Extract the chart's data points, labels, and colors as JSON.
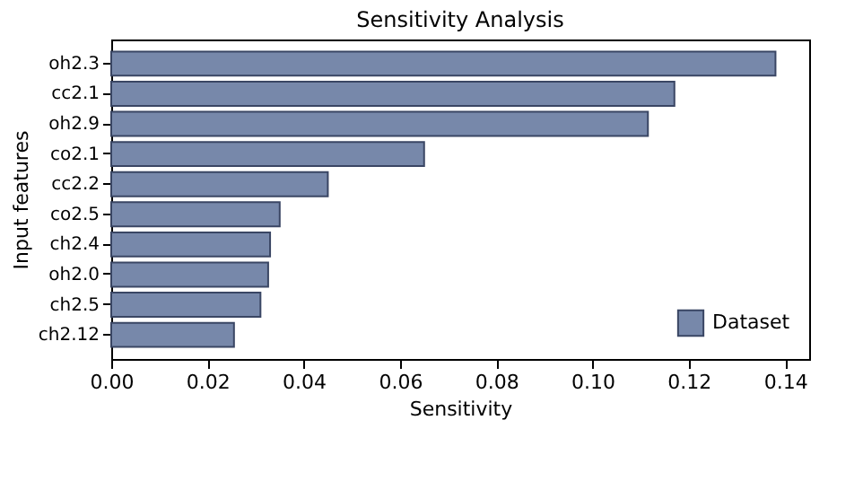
{
  "chart_data": {
    "type": "bar",
    "orientation": "horizontal",
    "title": "Sensitivity Analysis",
    "xlabel": "Sensitivity",
    "ylabel": "Input features",
    "categories": [
      "oh2.3",
      "cc2.1",
      "oh2.9",
      "co2.1",
      "cc2.2",
      "co2.5",
      "ch2.4",
      "oh2.0",
      "ch2.5",
      "ch2.12"
    ],
    "series": [
      {
        "name": "Dataset",
        "color": "#7788aa",
        "values": [
          0.138,
          0.117,
          0.1115,
          0.065,
          0.045,
          0.035,
          0.033,
          0.0326,
          0.031,
          0.0255
        ]
      }
    ],
    "xlim": [
      0,
      0.145
    ],
    "xticks": [
      {
        "value": 0,
        "label": "0.00"
      },
      0.02,
      0.04,
      0.06,
      0.08,
      {
        "value": 0.1,
        "label": "0.10"
      },
      0.12,
      0.14
    ],
    "grid": false,
    "legend": "bottom right"
  }
}
